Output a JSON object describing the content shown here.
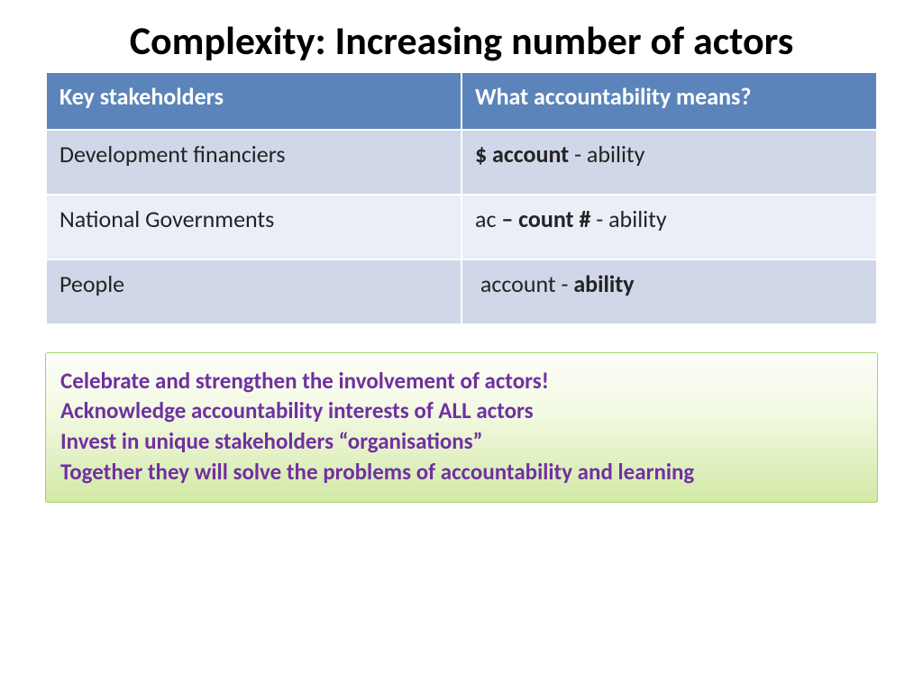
{
  "title": "Complexity: Increasing number of actors",
  "table": {
    "header_bg": "#5b84ba",
    "row_colors": [
      "#d0d7e8",
      "#eaeef7",
      "#d0d7e8"
    ],
    "col1_header": "Key stakeholders",
    "col2_header": "What accountability means?",
    "rows": [
      {
        "stakeholder": "Development financiers",
        "meaning_html": "<b>$ account</b> - ability"
      },
      {
        "stakeholder": "National Governments",
        "meaning_html": "ac <b>– count #</b> - ability"
      },
      {
        "stakeholder": "People",
        "meaning_html": "&nbsp;account - <b>ability</b>"
      }
    ]
  },
  "callout": {
    "lines": [
      "Celebrate and strengthen the involvement of actors!",
      "Acknowledge accountability interests of ALL actors",
      "Invest in unique stakeholders “organisations”",
      "Together they will solve the problems of accountability and learning"
    ]
  }
}
